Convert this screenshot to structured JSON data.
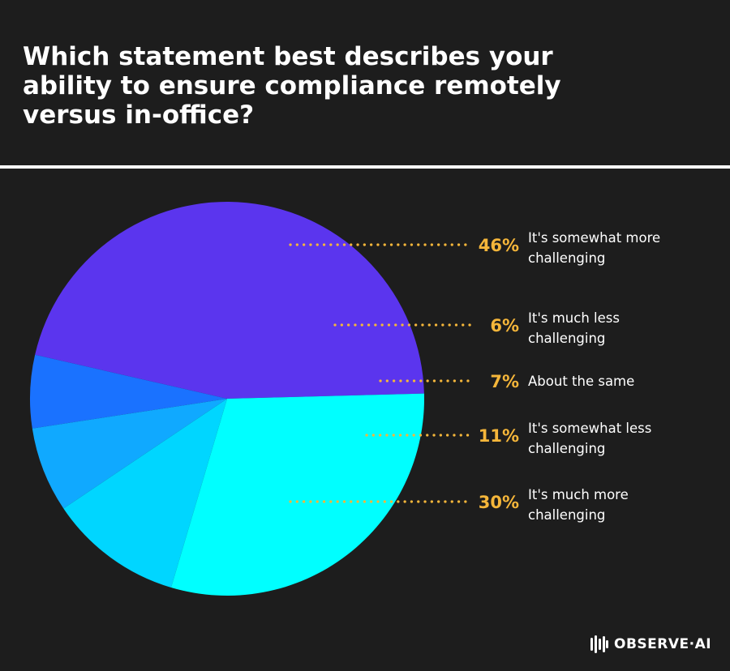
{
  "title": "Which statement best describes your ability to ensure compliance remotely versus in-office?",
  "brand": {
    "logo_text": "OBSERVE·AI",
    "logo_icon": "observe-ai-logo-icon"
  },
  "colors": {
    "background": "#1d1d1d",
    "leader": "#f5b63a",
    "percent_text": "#f5b63a",
    "label_text": "#ffffff"
  },
  "chart_data": {
    "type": "pie",
    "slices": [
      {
        "label": "It's somewhat more challenging",
        "value": 46,
        "display": "46%",
        "color": "#5b35ee",
        "label_lines": [
          "It's somewhat more",
          "challenging"
        ]
      },
      {
        "label": "It's much less challenging",
        "value": 6,
        "display": "6%",
        "color": "#1a72ff",
        "label_lines": [
          "It's much less",
          "challenging"
        ]
      },
      {
        "label": "About the same",
        "value": 7,
        "display": "7%",
        "color": "#10a9ff",
        "label_lines": [
          "About the same"
        ]
      },
      {
        "label": "It's somewhat less challenging",
        "value": 11,
        "display": "11%",
        "color": "#00d6ff",
        "label_lines": [
          "It's somewhat less",
          "challenging"
        ]
      },
      {
        "label": "It's much more challenging",
        "value": 30,
        "display": "30%",
        "color": "#00ffff",
        "label_lines": [
          "It's much more",
          "challenging"
        ]
      }
    ]
  }
}
